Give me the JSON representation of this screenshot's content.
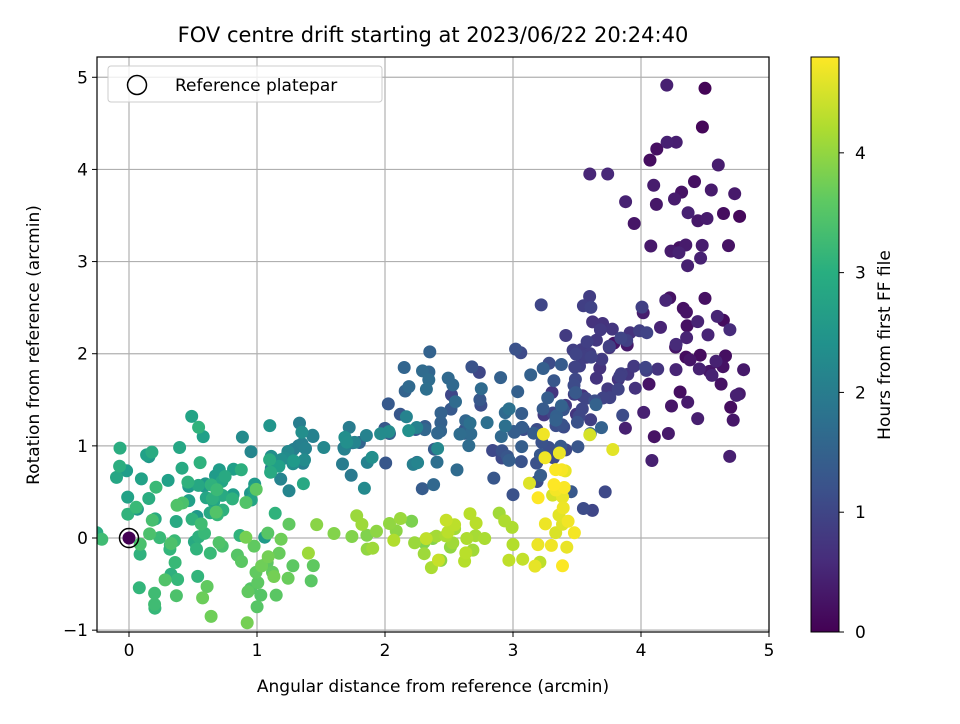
{
  "chart_data": {
    "type": "scatter",
    "title": "FOV centre drift starting at 2023/06/22 20:24:40",
    "xlabel": "Angular distance from reference (arcmin)",
    "ylabel": "Rotation from reference (arcmin)",
    "xlim": [
      -0.25,
      5
    ],
    "ylim": [
      -1.02,
      5.22
    ],
    "xticks": [
      0,
      1,
      2,
      3,
      4,
      5
    ],
    "yticks": [
      -1,
      0,
      1,
      2,
      3,
      4,
      5
    ],
    "grid": true,
    "legend": {
      "position": "top-left",
      "entries": [
        "Reference platepar"
      ]
    },
    "reference_point": {
      "x": 0,
      "y": 0
    },
    "colorbar": {
      "label": "Hours from first FF file",
      "colormap": "viridis",
      "range": [
        0,
        4.8
      ],
      "ticks": [
        0,
        1,
        2,
        3,
        4
      ]
    },
    "clusters": [
      {
        "hours": [
          0.15,
          0.45
        ],
        "cx": 4.35,
        "cy": 3.5,
        "sx": 0.25,
        "sy": 0.55,
        "n": 30
      },
      {
        "hours": [
          0.15,
          0.6
        ],
        "cx": 4.3,
        "cy": 1.8,
        "sx": 0.25,
        "sy": 0.35,
        "n": 40
      },
      {
        "hours": [
          0.7,
          1.0
        ],
        "cx": 3.7,
        "cy": 1.9,
        "sx": 0.2,
        "sy": 0.3,
        "n": 50
      },
      {
        "hours": [
          1.0,
          1.5
        ],
        "cx": 3.2,
        "cy": 1.3,
        "sx": 0.3,
        "sy": 0.35,
        "n": 55
      },
      {
        "hours": [
          1.3,
          1.8
        ],
        "cx": 2.4,
        "cy": 1.2,
        "sx": 0.35,
        "sy": 0.35,
        "n": 45
      },
      {
        "hours": [
          1.9,
          2.4
        ],
        "cx": 1.7,
        "cy": 0.95,
        "sx": 0.35,
        "sy": 0.2,
        "n": 40
      },
      {
        "hours": [
          2.5,
          3.1
        ],
        "cx": 0.6,
        "cy": 0.55,
        "sx": 0.4,
        "sy": 0.3,
        "n": 55
      },
      {
        "hours": [
          3.0,
          3.5
        ],
        "cx": 0.4,
        "cy": 0.1,
        "sx": 0.3,
        "sy": 0.35,
        "n": 35
      },
      {
        "hours": [
          3.5,
          3.8
        ],
        "cx": 1.0,
        "cy": -0.3,
        "sx": 0.2,
        "sy": 0.3,
        "n": 25
      },
      {
        "hours": [
          3.8,
          4.1
        ],
        "cx": 2.0,
        "cy": 0.0,
        "sx": 0.25,
        "sy": 0.15,
        "n": 20
      },
      {
        "hours": [
          4.1,
          4.4
        ],
        "cx": 2.6,
        "cy": 0.0,
        "sx": 0.25,
        "sy": 0.2,
        "n": 25
      },
      {
        "hours": [
          4.5,
          4.8
        ],
        "cx": 3.35,
        "cy": 0.3,
        "sx": 0.1,
        "sy": 0.35,
        "n": 20
      }
    ],
    "points": [
      {
        "x": 4.5,
        "y": 4.88,
        "h": 0.05
      },
      {
        "x": 4.48,
        "y": 4.46,
        "h": 0.08
      },
      {
        "x": 4.77,
        "y": 3.49,
        "h": 0.1
      },
      {
        "x": 4.5,
        "y": 2.6,
        "h": 0.2
      },
      {
        "x": 3.6,
        "y": 3.95,
        "h": 0.5
      },
      {
        "x": 3.74,
        "y": 3.95,
        "h": 0.55
      },
      {
        "x": 3.88,
        "y": 3.65,
        "h": 0.45
      },
      {
        "x": 4.12,
        "y": 3.62,
        "h": 0.3
      },
      {
        "x": 4.35,
        "y": 3.18,
        "h": 0.35
      },
      {
        "x": 4.72,
        "y": 1.28,
        "h": 0.3
      },
      {
        "x": 3.78,
        "y": 0.96,
        "h": 4.6
      },
      {
        "x": 3.6,
        "y": 1.12,
        "h": 4.5
      },
      {
        "x": 3.25,
        "y": 0.87,
        "h": 4.7
      },
      {
        "x": 3.38,
        "y": 0.74,
        "h": 4.75
      },
      {
        "x": 3.32,
        "y": 0.58,
        "h": 4.8
      },
      {
        "x": 3.3,
        "y": -0.08,
        "h": 4.7
      },
      {
        "x": 3.42,
        "y": -0.1,
        "h": 4.65
      },
      {
        "x": 3.0,
        "y": -0.07,
        "h": 4.25
      },
      {
        "x": 1.25,
        "y": 0.15,
        "h": 3.6
      },
      {
        "x": 0.95,
        "y": -0.55,
        "h": 3.5
      },
      {
        "x": 1.15,
        "y": -0.62,
        "h": 3.55
      },
      {
        "x": 1.03,
        "y": -0.62,
        "h": 3.5
      },
      {
        "x": 0.2,
        "y": -0.72,
        "h": 3.3
      },
      {
        "x": 0.2,
        "y": -0.6,
        "h": 3.3
      },
      {
        "x": 0.38,
        "y": -0.45,
        "h": 3.2
      },
      {
        "x": 0.58,
        "y": 1.1,
        "h": 2.7
      },
      {
        "x": 1.1,
        "y": 1.22,
        "h": 2.5
      },
      {
        "x": 1.72,
        "y": 1.2,
        "h": 2.0
      },
      {
        "x": 2.35,
        "y": 2.02,
        "h": 1.5
      },
      {
        "x": 2.15,
        "y": 1.85,
        "h": 1.55
      },
      {
        "x": 3.02,
        "y": 2.05,
        "h": 1.2
      },
      {
        "x": 3.22,
        "y": 2.53,
        "h": 1.0
      },
      {
        "x": 3.55,
        "y": 2.52,
        "h": 0.9
      },
      {
        "x": 3.0,
        "y": 0.47,
        "h": 1.2
      },
      {
        "x": 3.55,
        "y": 0.32,
        "h": 1.1
      },
      {
        "x": 3.62,
        "y": 0.3,
        "h": 1.0
      },
      {
        "x": 3.72,
        "y": 0.5,
        "h": 1.05
      },
      {
        "x": 2.85,
        "y": 0.65,
        "h": 1.3
      },
      {
        "x": 2.38,
        "y": 0.58,
        "h": 1.6
      },
      {
        "x": 2.25,
        "y": 0.82,
        "h": 1.5
      }
    ]
  }
}
